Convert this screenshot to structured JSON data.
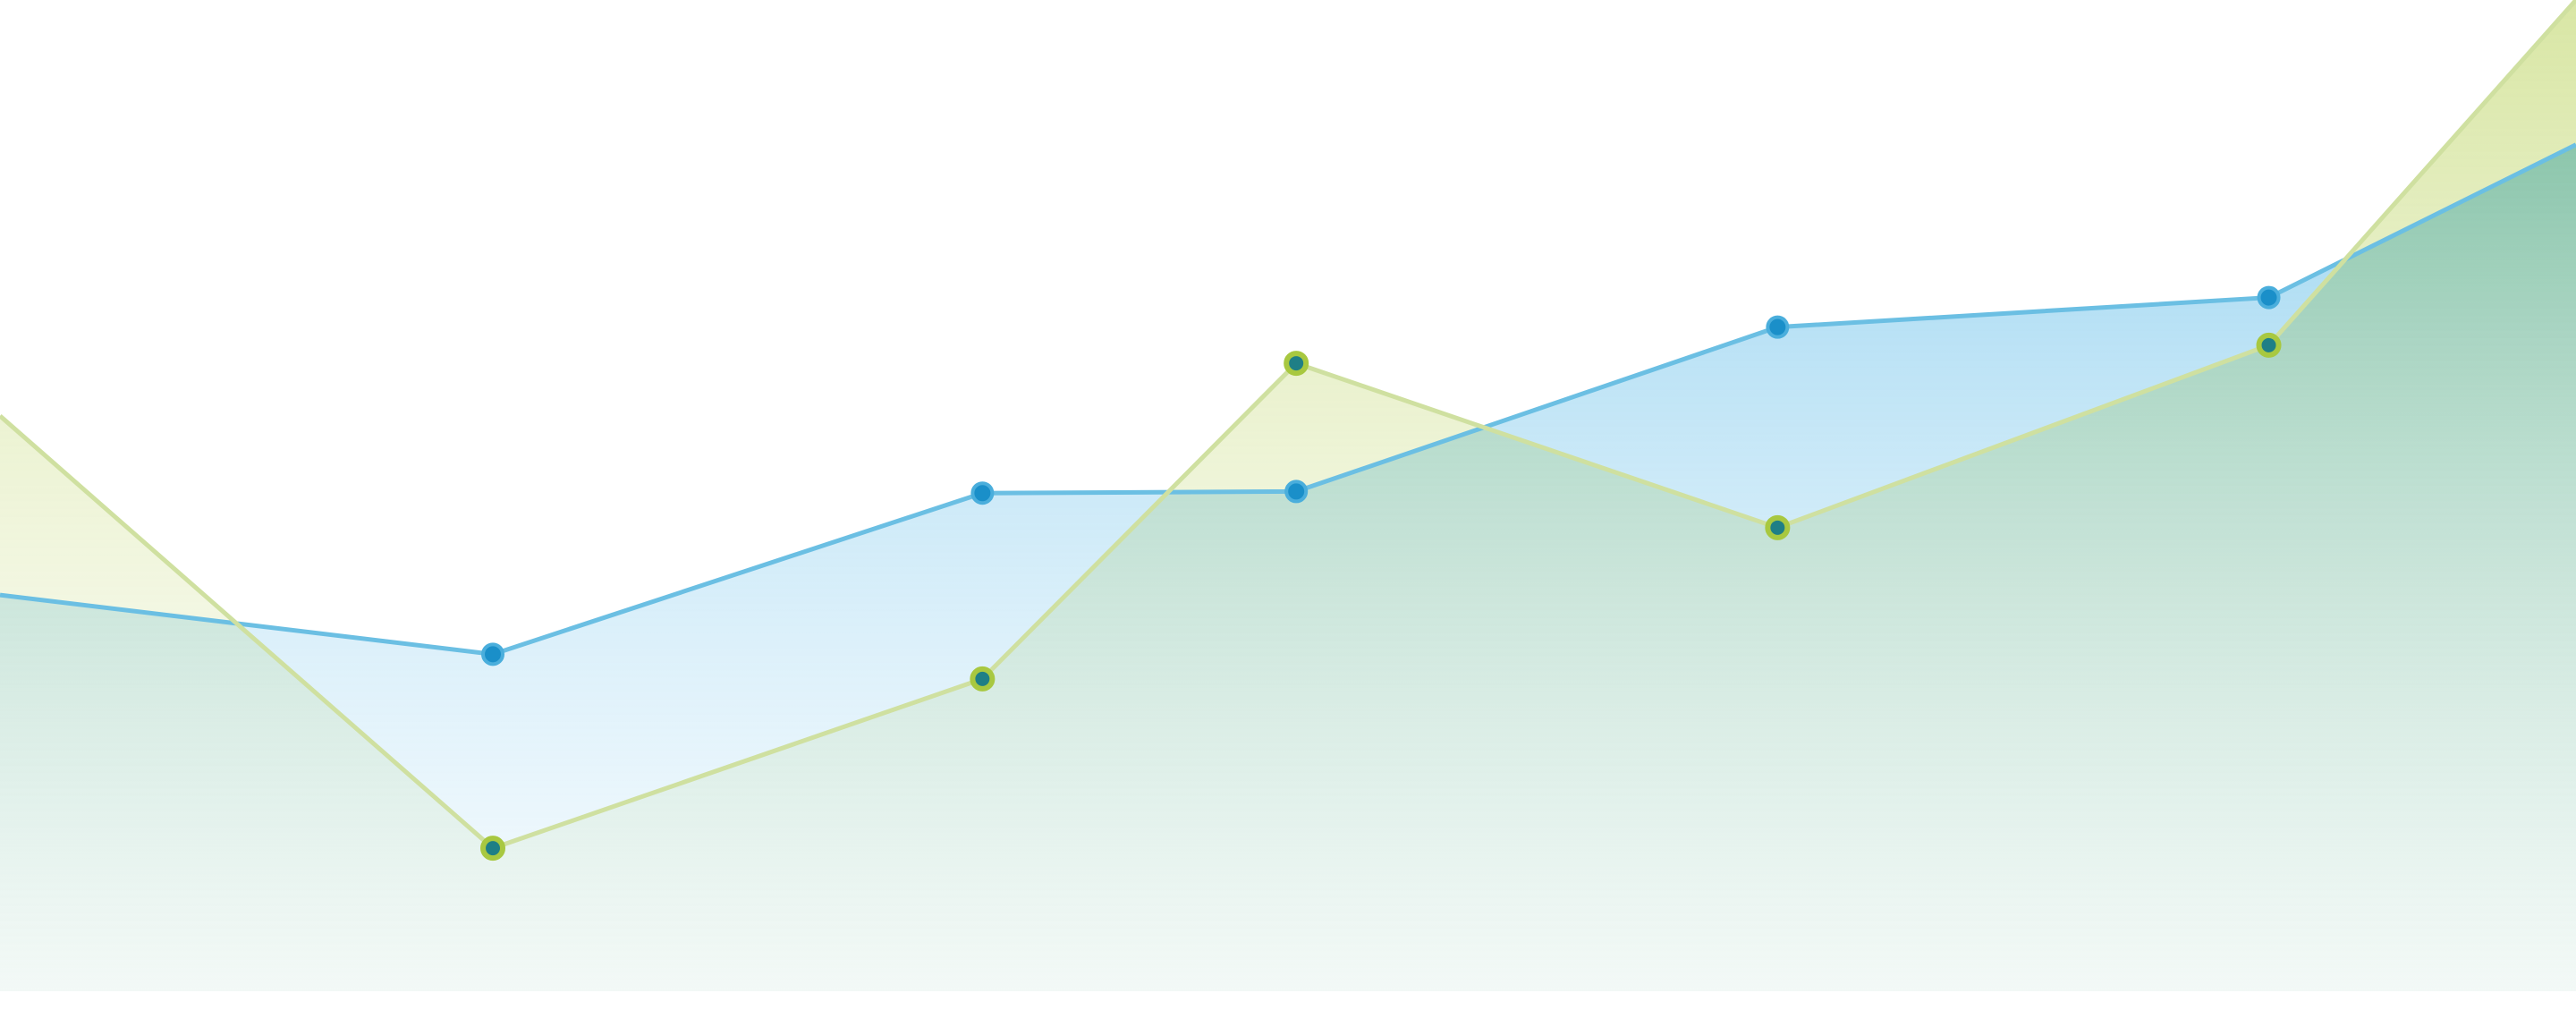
{
  "chart_data": {
    "type": "area",
    "x": [
      0,
      300,
      598,
      789,
      1082,
      1381,
      1568
    ],
    "xlim": [
      0,
      1568
    ],
    "ylim": [
      0,
      603
    ],
    "series": [
      {
        "color": "#6bbfe3",
        "marker_color": "#1a8fc9",
        "values": [
          241,
          205,
          303,
          304,
          404,
          422,
          515
        ]
      },
      {
        "color": "#cfe0a0",
        "marker_color": "#a8c840",
        "values": [
          350,
          87,
          190,
          382,
          282,
          393,
          603
        ]
      }
    ]
  }
}
